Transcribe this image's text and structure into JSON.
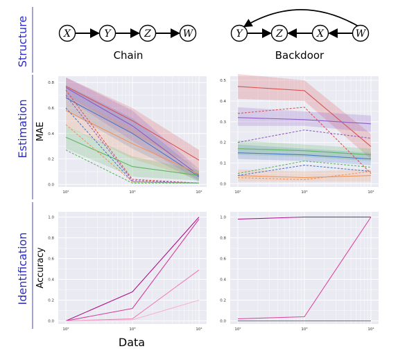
{
  "row_labels": {
    "structure": "Structure",
    "estimation": "Estimation",
    "identification": "Identification"
  },
  "x_title": "Data",
  "colors": {
    "row_label": "#2b2bd0",
    "rule": "#1a1a7a",
    "panel_bg": "#eaeaf2",
    "grid": "#ffffff",
    "red": "#d9534f",
    "purple": "#8e5cc2",
    "blue": "#4a78c9",
    "orange": "#f0955a",
    "green": "#5cb85c",
    "pink_light": "#f4a6c6"
  },
  "structures": [
    {
      "title": "Chain",
      "nodes": [
        "X",
        "Y",
        "Z",
        "W"
      ],
      "edges": [
        [
          "X",
          "Y"
        ],
        [
          "Y",
          "Z"
        ],
        [
          "Z",
          "W"
        ]
      ]
    },
    {
      "title": "Backdoor",
      "nodes": [
        "Y",
        "Z",
        "X",
        "W"
      ],
      "edges": [
        [
          "Y",
          "Z"
        ],
        [
          "X",
          "Z"
        ],
        [
          "W",
          "X"
        ],
        [
          "W",
          "Y"
        ]
      ]
    }
  ],
  "chart_data": [
    {
      "type": "line",
      "panel": "estimation-chain",
      "ylabel": "MAE",
      "x": [
        "10^2",
        "10^3",
        "10^4"
      ],
      "xtick_labels": [
        "10²",
        "10³",
        "10⁴"
      ],
      "ylim": [
        -0.02,
        0.85
      ],
      "yticks": [
        0.0,
        0.2,
        0.4,
        0.6,
        0.8
      ],
      "ytick_labels": [
        "0.0",
        "0.2",
        "0.4",
        "0.6",
        "0.8"
      ],
      "grid": true,
      "series": [
        {
          "color": "#d9534f",
          "style": "solid",
          "values": [
            0.77,
            0.5,
            0.19
          ],
          "band": [
            [
              0.7,
              0.84
            ],
            [
              0.4,
              0.6
            ],
            [
              0.12,
              0.27
            ]
          ]
        },
        {
          "color": "#8e5cc2",
          "style": "solid",
          "values": [
            0.76,
            0.46,
            0.07
          ],
          "band": [
            [
              0.68,
              0.84
            ],
            [
              0.34,
              0.58
            ],
            [
              0.03,
              0.12
            ]
          ]
        },
        {
          "color": "#4a78c9",
          "style": "solid",
          "values": [
            0.68,
            0.4,
            0.06
          ],
          "band": [
            [
              0.58,
              0.78
            ],
            [
              0.28,
              0.52
            ],
            [
              0.02,
              0.1
            ]
          ]
        },
        {
          "color": "#f0955a",
          "style": "solid",
          "values": [
            0.58,
            0.32,
            0.08
          ],
          "band": [
            [
              0.46,
              0.7
            ],
            [
              0.2,
              0.44
            ],
            [
              0.04,
              0.12
            ]
          ]
        },
        {
          "color": "#5cb85c",
          "style": "solid",
          "values": [
            0.37,
            0.14,
            0.07
          ],
          "band": [
            [
              0.28,
              0.46
            ],
            [
              0.06,
              0.22
            ],
            [
              0.03,
              0.11
            ]
          ]
        },
        {
          "color": "#d9534f",
          "style": "dashed",
          "values": [
            0.74,
            0.04,
            0.01
          ]
        },
        {
          "color": "#8e5cc2",
          "style": "dashed",
          "values": [
            0.7,
            0.03,
            0.01
          ]
        },
        {
          "color": "#4a78c9",
          "style": "dashed",
          "values": [
            0.6,
            0.02,
            0.01
          ]
        },
        {
          "color": "#f0955a",
          "style": "dashed",
          "values": [
            0.47,
            0.02,
            0.01
          ]
        },
        {
          "color": "#5cb85c",
          "style": "dashed",
          "values": [
            0.27,
            0.01,
            0.01
          ]
        }
      ]
    },
    {
      "type": "line",
      "panel": "estimation-backdoor",
      "x": [
        "10^2",
        "10^3",
        "10^4"
      ],
      "xtick_labels": [
        "10²",
        "10³",
        "10⁴"
      ],
      "ylim": [
        -0.015,
        0.52
      ],
      "yticks": [
        0.0,
        0.1,
        0.2,
        0.3,
        0.4,
        0.5
      ],
      "ytick_labels": [
        "0.0",
        "0.1",
        "0.2",
        "0.3",
        "0.4",
        "0.5"
      ],
      "grid": true,
      "series": [
        {
          "color": "#d9534f",
          "style": "solid",
          "values": [
            0.47,
            0.45,
            0.18
          ],
          "band": [
            [
              0.41,
              0.53
            ],
            [
              0.4,
              0.5
            ],
            [
              0.12,
              0.24
            ]
          ]
        },
        {
          "color": "#8e5cc2",
          "style": "solid",
          "values": [
            0.32,
            0.31,
            0.29
          ],
          "band": [
            [
              0.28,
              0.37
            ],
            [
              0.28,
              0.35
            ],
            [
              0.25,
              0.33
            ]
          ]
        },
        {
          "color": "#4a78c9",
          "style": "solid",
          "values": [
            0.15,
            0.14,
            0.12
          ],
          "band": [
            [
              0.12,
              0.19
            ],
            [
              0.11,
              0.17
            ],
            [
              0.09,
              0.15
            ]
          ]
        },
        {
          "color": "#5cb85c",
          "style": "solid",
          "values": [
            0.17,
            0.16,
            0.14
          ],
          "band": [
            [
              0.14,
              0.21
            ],
            [
              0.13,
              0.19
            ],
            [
              0.11,
              0.17
            ]
          ]
        },
        {
          "color": "#f0955a",
          "style": "solid",
          "values": [
            0.04,
            0.03,
            0.04
          ],
          "band": [
            [
              0.01,
              0.07
            ],
            [
              0.01,
              0.06
            ],
            [
              0.01,
              0.07
            ]
          ]
        },
        {
          "color": "#d9534f",
          "style": "dashed",
          "values": [
            0.34,
            0.37,
            0.05
          ]
        },
        {
          "color": "#8e5cc2",
          "style": "dashed",
          "values": [
            0.2,
            0.26,
            0.22
          ]
        },
        {
          "color": "#4a78c9",
          "style": "dashed",
          "values": [
            0.04,
            0.09,
            0.06
          ]
        },
        {
          "color": "#5cb85c",
          "style": "dashed",
          "values": [
            0.05,
            0.11,
            0.08
          ]
        },
        {
          "color": "#f0955a",
          "style": "dashed",
          "values": [
            0.03,
            0.02,
            0.06
          ]
        }
      ]
    },
    {
      "type": "line",
      "panel": "identification-chain",
      "ylabel": "Accuracy",
      "x": [
        "10^2",
        "10^3",
        "10^4"
      ],
      "xtick_labels": [
        "10²",
        "10³",
        "10⁴"
      ],
      "ylim": [
        -0.03,
        1.05
      ],
      "yticks": [
        0.0,
        0.2,
        0.4,
        0.6,
        0.8,
        1.0
      ],
      "ytick_labels": [
        "0.0",
        "0.2",
        "0.4",
        "0.6",
        "0.8",
        "1.0"
      ],
      "grid": true,
      "series": [
        {
          "color": "#b0128a",
          "style": "solid",
          "values": [
            0.0,
            0.28,
            1.0
          ]
        },
        {
          "color": "#d63c9a",
          "style": "solid",
          "values": [
            0.0,
            0.12,
            0.98
          ]
        },
        {
          "color": "#ee7fb5",
          "style": "solid",
          "values": [
            0.0,
            0.02,
            0.49
          ]
        },
        {
          "color": "#f6b3cf",
          "style": "solid",
          "values": [
            0.0,
            0.01,
            0.2
          ]
        }
      ]
    },
    {
      "type": "line",
      "panel": "identification-backdoor",
      "x": [
        "10^2",
        "10^3",
        "10^4"
      ],
      "xtick_labels": [
        "10²",
        "10³",
        "10⁴"
      ],
      "ylim": [
        -0.03,
        1.05
      ],
      "yticks": [
        0.0,
        0.2,
        0.4,
        0.6,
        0.8,
        1.0
      ],
      "ytick_labels": [
        "0.0",
        "0.2",
        "0.4",
        "0.6",
        "0.8",
        "1.0"
      ],
      "grid": true,
      "series": [
        {
          "color": "#b0128a",
          "style": "solid",
          "values": [
            0.98,
            1.0,
            1.0
          ]
        },
        {
          "color": "#e0449f",
          "style": "solid",
          "values": [
            0.02,
            0.04,
            1.0
          ]
        },
        {
          "color": "#d63c9a",
          "style": "solid",
          "values": [
            0.0,
            0.0,
            0.0
          ]
        }
      ]
    }
  ]
}
